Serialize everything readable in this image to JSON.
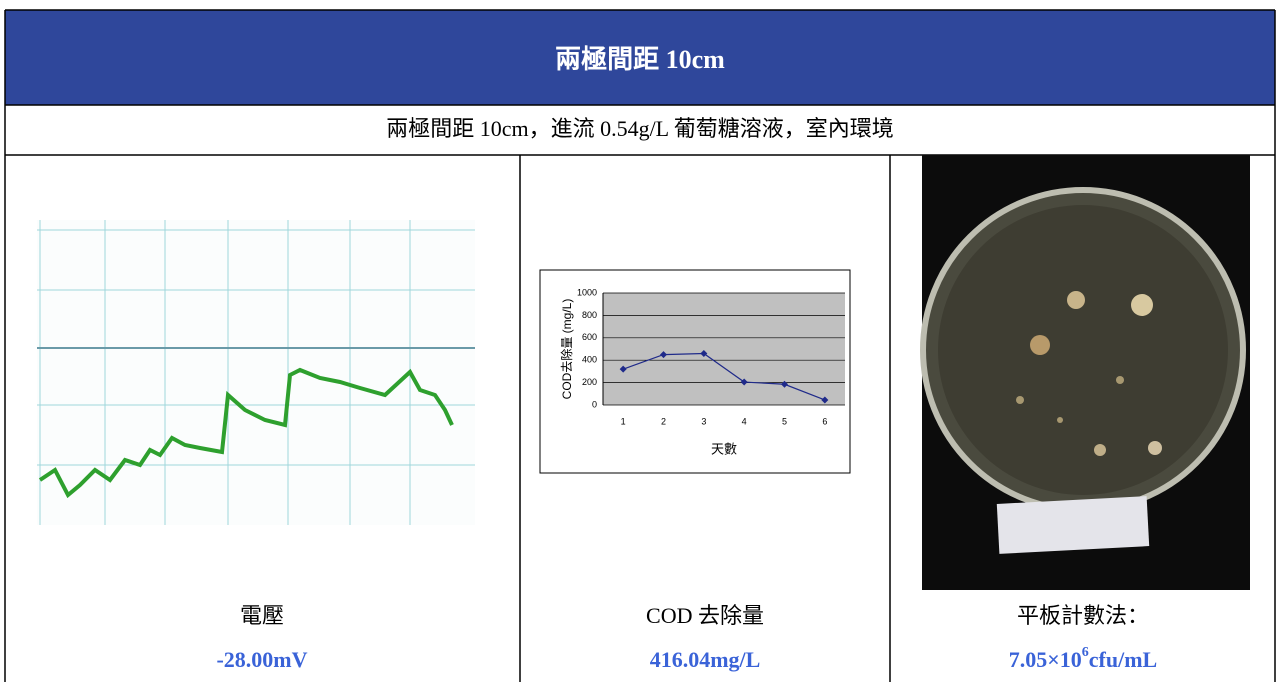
{
  "header": {
    "title": "兩極間距 10cm",
    "subtitle": "兩極間距 10cm，進流 0.54g/L 葡萄糖溶液，室內環境"
  },
  "cells": [
    {
      "caption": "電壓",
      "value": "-28.00mV"
    },
    {
      "caption": "COD 去除量",
      "value": "416.04mg/L",
      "chart_data": {
        "type": "line",
        "y_label": "COD去除量 (mg/L)",
        "x_label": "天數",
        "categories": [
          "1",
          "2",
          "3",
          "4",
          "5",
          "6"
        ],
        "values": [
          320,
          450,
          460,
          205,
          185,
          45
        ],
        "color": "#1f2a8a",
        "ylim": [
          0,
          1000
        ],
        "yticks": [
          0,
          200,
          400,
          600,
          800,
          1000
        ],
        "grid": true
      }
    },
    {
      "caption": "平板計數法：",
      "value": {
        "base": "7.05×10",
        "exponent": "6",
        "unit": "cfu/mL"
      }
    }
  ]
}
